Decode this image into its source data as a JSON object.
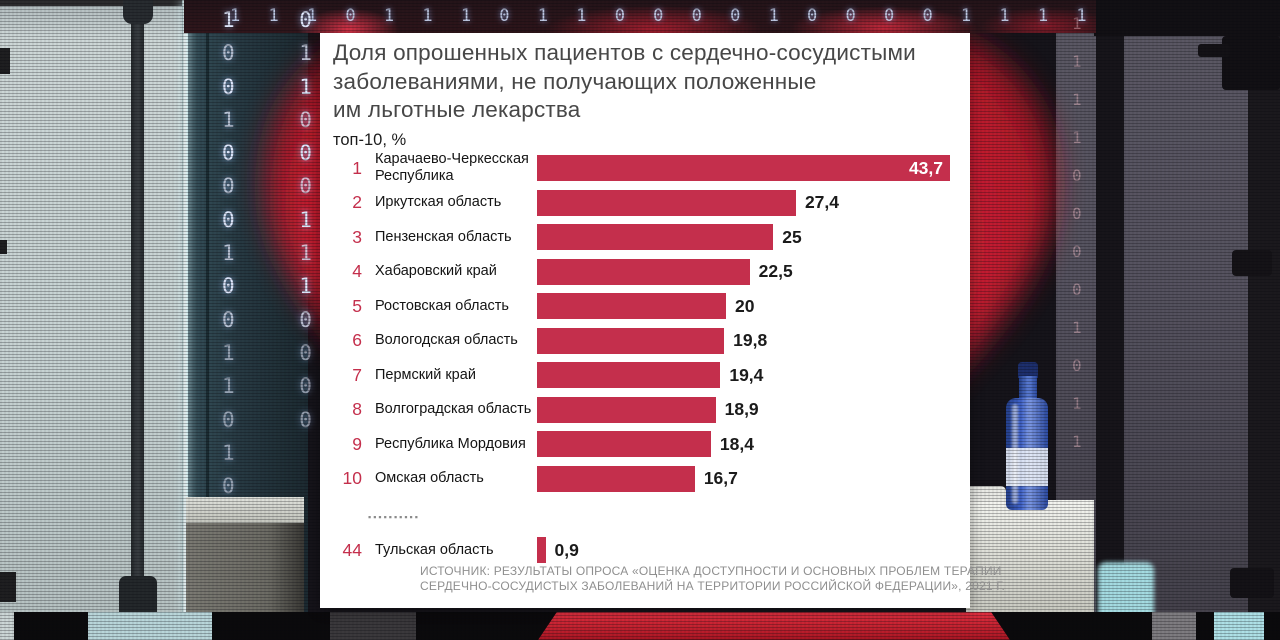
{
  "chart": {
    "title_lines": [
      "Доля опрошенных пациентов с сердечно-сосудистыми",
      "заболеваниями, не получающих положенные",
      "им льготные лекарства"
    ],
    "subtitle": "топ-10, %",
    "separator_dots": "▪▪▪▪▪▪▪▪▪▪",
    "source_lines": [
      "ИСТОЧНИК: РЕЗУЛЬТАТЫ ОПРОСА «ОЦЕНКА ДОСТУПНОСТИ И ОСНОВНЫХ ПРОБЛЕМ ТЕРАПИИ",
      "СЕРДЕЧНО-СОСУДИСТЫХ ЗАБОЛЕВАНИЙ НА ТЕРРИТОРИИ РОССИЙСКОЙ ФЕДЕРАЦИИ», 2021 Г."
    ]
  },
  "chart_data": {
    "type": "bar",
    "orientation": "horizontal",
    "unit": "%",
    "title": "Доля опрошенных пациентов с сердечно-сосудистыми заболеваниями, не получающих положенные им льготные лекарства",
    "subtitle": "топ-10, %",
    "max_value": 43.7,
    "rows": [
      {
        "rank": "1",
        "region": "Карачаево-Черкесская Республика",
        "value": 43.7,
        "label": "43,7",
        "value_inside": true
      },
      {
        "rank": "2",
        "region": "Иркутская область",
        "value": 27.4,
        "label": "27,4"
      },
      {
        "rank": "3",
        "region": "Пензенская область",
        "value": 25,
        "label": "25"
      },
      {
        "rank": "4",
        "region": "Хабаровский край",
        "value": 22.5,
        "label": "22,5"
      },
      {
        "rank": "5",
        "region": "Ростовская область",
        "value": 20,
        "label": "20"
      },
      {
        "rank": "6",
        "region": "Вологодская область",
        "value": 19.8,
        "label": "19,8"
      },
      {
        "rank": "7",
        "region": "Пермский край",
        "value": 19.4,
        "label": "19,4"
      },
      {
        "rank": "8",
        "region": "Волгоградская область",
        "value": 18.9,
        "label": "18,9"
      },
      {
        "rank": "9",
        "region": "Республика Мордовия",
        "value": 18.4,
        "label": "18,4"
      },
      {
        "rank": "10",
        "region": "Омская область",
        "value": 16.7,
        "label": "16,7"
      }
    ],
    "extra_row": {
      "rank": "44",
      "region": "Тульская область",
      "value": 0.9,
      "label": "0,9"
    },
    "source": "ИСТОЧНИК: РЕЗУЛЬТАТЫ ОПРОСА «ОЦЕНКА ДОСТУПНОСТИ И ОСНОВНЫХ ПРОБЛЕМ ТЕРАПИИ СЕРДЕЧНО-СОСУДИСТЫХ ЗАБОЛЕВАНИЙ НА ТЕРРИТОРИИ РОССИЙСКОЙ ФЕДЕРАЦИИ», 2021 Г."
  },
  "colors": {
    "bar": "#c42f4c",
    "rank": "#c42f4c",
    "value_in_bar": "#ffffff",
    "panel": "#ffffff",
    "title": "#474747",
    "label": "#141414",
    "value": "#1b1b1b",
    "source": "#8f8f8f",
    "heart": "#e12b3c"
  },
  "background": {
    "top_binary_row": "1 1 1 0 1 1 1 0 1 1 0 0 0 0 1 0 0 0 0 1 1 1 1 1",
    "left_binary_rows": [
      "1 0",
      "0 1",
      "0 1",
      "1 0",
      "0 0",
      "0 0",
      "0 1",
      "1 1",
      "0 1",
      "0 0",
      "1 0 1",
      "1 0",
      "0 0",
      "1",
      "0"
    ],
    "right_binary_rows": [
      "1",
      "1",
      "1",
      "1",
      "0",
      "0",
      "0",
      "0",
      "1",
      "0",
      "1",
      "1"
    ]
  }
}
